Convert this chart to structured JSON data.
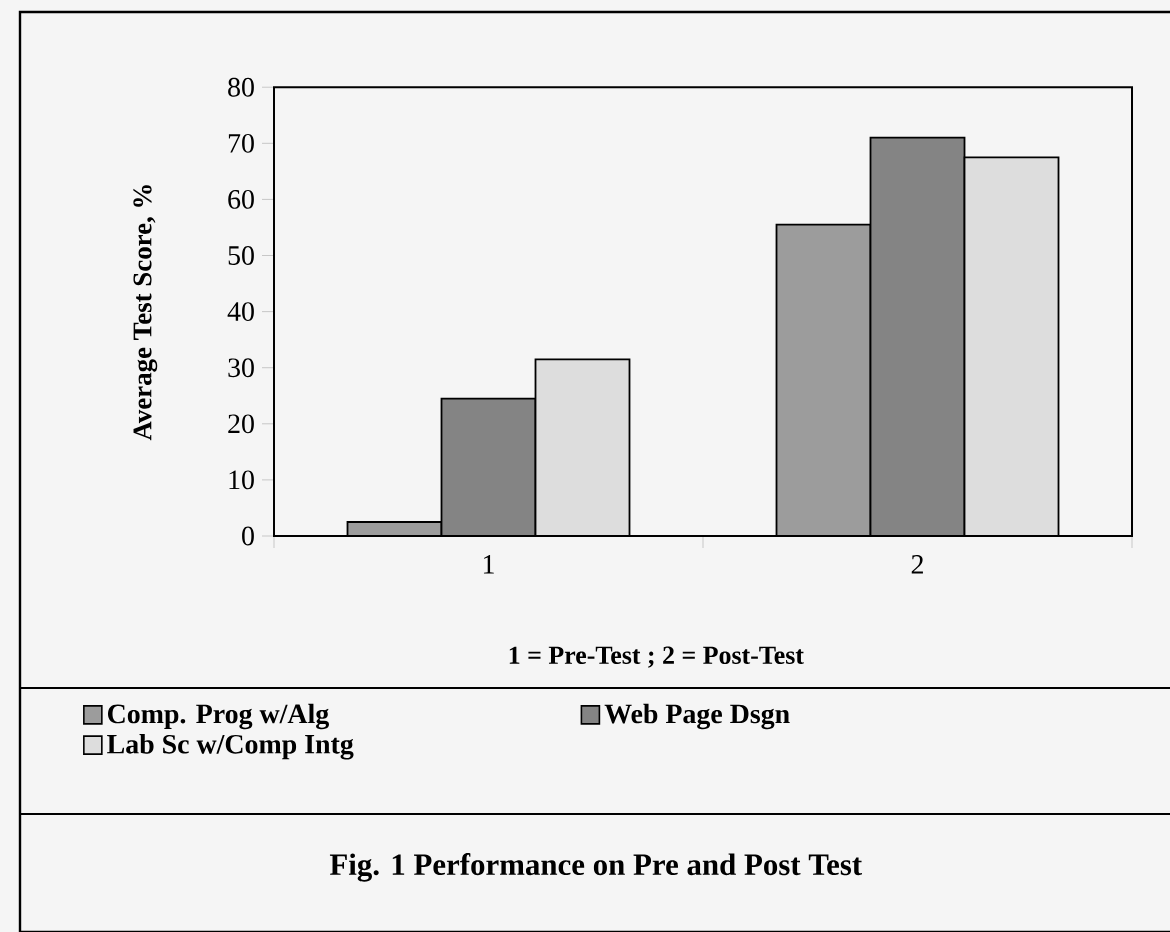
{
  "chart_data": {
    "type": "bar",
    "title": "Fig. 1  Performance on Pre and Post Test",
    "xlabel": "1 = Pre-Test ; 2 = Post-Test",
    "ylabel": "Average Test Score, %",
    "categories": [
      "1",
      "2"
    ],
    "series": [
      {
        "name": "Comp. Prog w/Alg",
        "color": "#9c9c9c",
        "values": [
          2.5,
          55.5
        ]
      },
      {
        "name": "Web Page Dsgn",
        "color": "#848484",
        "values": [
          24.5,
          71
        ]
      },
      {
        "name": "Lab Sc w/Comp Intg",
        "color": "#dddddd",
        "values": [
          31.5,
          67.5
        ]
      }
    ],
    "ylim": [
      0,
      80
    ],
    "yticks": [
      0,
      10,
      20,
      30,
      40,
      50,
      60,
      70,
      80
    ],
    "legend": "bottom"
  }
}
